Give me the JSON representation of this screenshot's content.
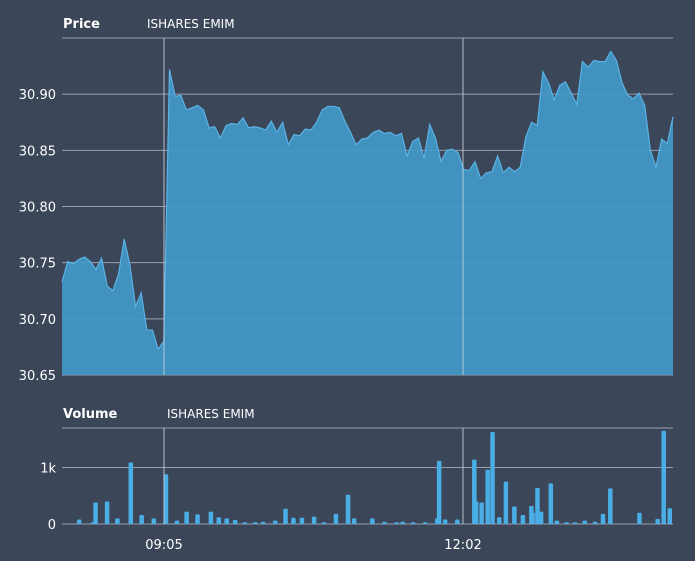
{
  "chart_data": [
    {
      "type": "area",
      "title": "Price",
      "subtitle": "ISHARES EMIM",
      "ylim": [
        30.65,
        30.95
      ],
      "yticks": [
        30.65,
        30.7,
        30.75,
        30.8,
        30.85,
        30.9
      ],
      "ytick_labels": [
        "30.65",
        "30.70",
        "30.75",
        "30.80",
        "30.85",
        "30.90"
      ],
      "time_markers": [
        "09:05",
        "12:02"
      ],
      "grid": true,
      "colors": {
        "fill": "#4299c8",
        "line": "#5ab3e6",
        "grid": "#aeb6c4",
        "background": "#3b4659",
        "text": "#ffffff"
      },
      "series": [
        {
          "values": [
            30.733,
            30.751,
            30.749,
            30.753,
            30.755,
            30.751,
            30.744,
            30.754,
            30.729,
            30.725,
            30.74,
            30.771,
            30.748,
            30.711,
            30.723,
            30.69,
            30.69,
            30.673,
            30.68,
            30.922,
            30.898,
            30.899,
            30.886,
            30.888,
            30.89,
            30.886,
            30.87,
            30.871,
            30.861,
            30.872,
            30.874,
            30.873,
            30.879,
            30.87,
            30.871,
            30.87,
            30.868,
            30.876,
            30.866,
            30.875,
            30.855,
            30.864,
            30.863,
            30.869,
            30.868,
            30.875,
            30.886,
            30.889,
            30.889,
            30.888,
            30.876,
            30.866,
            30.855,
            30.86,
            30.861,
            30.866,
            30.868,
            30.865,
            30.866,
            30.863,
            30.865,
            30.845,
            30.858,
            30.861,
            30.843,
            30.873,
            30.861,
            30.84,
            30.85,
            30.851,
            30.848,
            30.833,
            30.832,
            30.84,
            30.825,
            30.83,
            30.831,
            30.845,
            30.83,
            30.835,
            30.831,
            30.835,
            30.862,
            30.875,
            30.872,
            30.92,
            30.91,
            30.895,
            30.908,
            30.911,
            30.901,
            30.891,
            30.929,
            30.924,
            30.93,
            30.929,
            30.929,
            30.938,
            30.93,
            30.91,
            30.899,
            30.896,
            30.901,
            30.89,
            30.85,
            30.835,
            30.86,
            30.856,
            30.88
          ]
        }
      ]
    },
    {
      "type": "bar",
      "title": "Volume",
      "subtitle": "ISHARES EMIM",
      "ylim": [
        0,
        1700
      ],
      "yticks": [
        0,
        1000
      ],
      "ytick_labels": [
        "0",
        "1k"
      ],
      "xtick_labels": [
        "09:05",
        "12:02"
      ],
      "grid": true,
      "colors": {
        "bar": "#4aaee6",
        "grid": "#aeb6c4",
        "text": "#ffffff"
      },
      "series": [
        {
          "values": [
            10,
            80,
            30,
            380,
            400,
            100,
            1090,
            160,
            100,
            880,
            60,
            220,
            170,
            220,
            120,
            100,
            70,
            30,
            30,
            40,
            60,
            270,
            110,
            110,
            130,
            30,
            180,
            60,
            100,
            520,
            100,
            40,
            30,
            40,
            30,
            30,
            100,
            80,
            1120,
            80,
            50,
            1140,
            400,
            380,
            960,
            1630,
            120,
            750,
            310,
            160,
            320,
            200,
            640,
            220,
            720,
            60,
            30,
            30,
            60,
            40,
            180,
            630,
            200,
            90,
            1650,
            280
          ],
          "positions": [
            0.0,
            0.025,
            0.048,
            0.052,
            0.071,
            0.088,
            0.11,
            0.128,
            0.148,
            0.168,
            0.186,
            0.202,
            0.22,
            0.242,
            0.255,
            0.268,
            0.282,
            0.298,
            0.315,
            0.328,
            0.348,
            0.365,
            0.378,
            0.392,
            0.412,
            0.428,
            0.448,
            0.468,
            0.478,
            0.468,
            0.508,
            0.528,
            0.548,
            0.558,
            0.575,
            0.595,
            0.615,
            0.628,
            0.618,
            0.648,
            0.648,
            0.676,
            0.679,
            0.688,
            0.698,
            0.706,
            0.717,
            0.728,
            0.742,
            0.756,
            0.77,
            0.772,
            0.78,
            0.786,
            0.802,
            0.812,
            0.828,
            0.842,
            0.858,
            0.875,
            0.888,
            0.9,
            0.948,
            0.978,
            0.988,
            0.998
          ]
        }
      ]
    }
  ]
}
